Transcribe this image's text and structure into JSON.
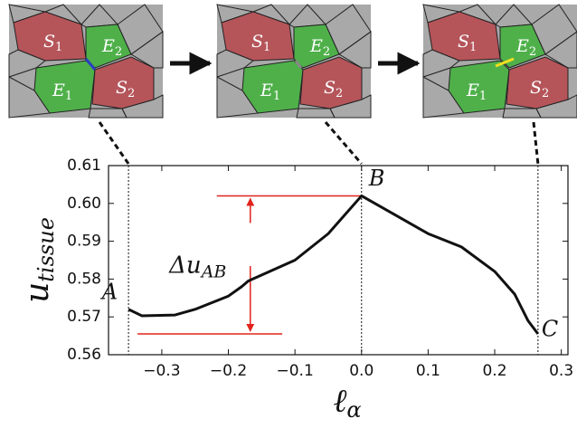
{
  "chart_data": {
    "type": "line",
    "ylabel": {
      "base": "u",
      "sub": "tissue"
    },
    "xlabel": {
      "base": "ℓ",
      "sub": "α"
    },
    "annotation": {
      "base": "Δu",
      "sub": "AB"
    },
    "point_labels": [
      "A",
      "B",
      "C"
    ],
    "cell_labels": [
      {
        "letter": "S",
        "sub": "1"
      },
      {
        "letter": "E",
        "sub": "2"
      },
      {
        "letter": "E",
        "sub": "1"
      },
      {
        "letter": "S",
        "sub": "2"
      }
    ],
    "x": [
      -0.35,
      -0.33,
      -0.28,
      -0.25,
      -0.2,
      -0.18,
      -0.17,
      -0.1,
      -0.05,
      0.0,
      0.05,
      0.1,
      0.15,
      0.2,
      0.23,
      0.25,
      0.265
    ],
    "series": [
      {
        "color": "#111111",
        "values": [
          0.572,
          0.5703,
          0.5705,
          0.572,
          0.5755,
          0.578,
          0.5795,
          0.585,
          0.592,
          0.602,
          0.597,
          0.592,
          0.5885,
          0.582,
          0.576,
          0.569,
          0.5655
        ]
      }
    ],
    "xlim": [
      -0.38,
      0.31
    ],
    "ylim": [
      0.56,
      0.61
    ],
    "xticks": [
      {
        "value": -0.3,
        "label": "−0.3"
      },
      {
        "value": -0.2,
        "label": "−0.2"
      },
      {
        "value": -0.1,
        "label": "−0.1"
      },
      {
        "value": 0.0,
        "label": "0.0"
      },
      0.1,
      0.2,
      0.3
    ],
    "yticks": [
      0.56,
      0.57,
      0.58,
      0.59,
      {
        "value": 0.6,
        "label": "0.60"
      },
      0.61
    ],
    "annotation_color": "#e0231c"
  }
}
